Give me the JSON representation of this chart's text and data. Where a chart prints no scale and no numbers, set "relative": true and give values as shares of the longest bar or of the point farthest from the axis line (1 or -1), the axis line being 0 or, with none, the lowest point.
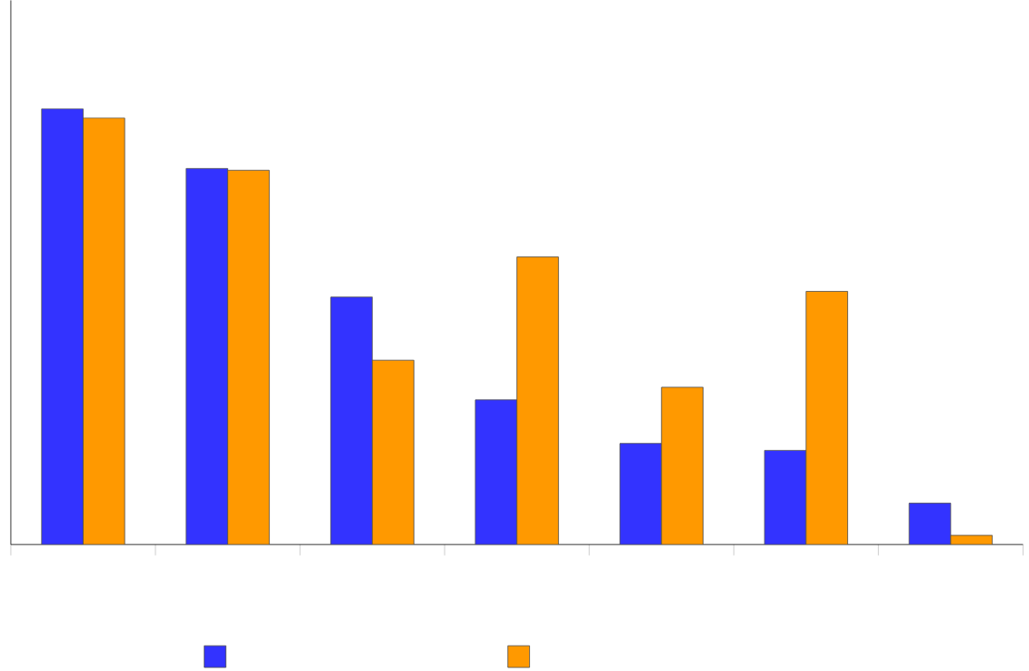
{
  "chart_data": {
    "type": "bar",
    "relative": true,
    "categories": [
      null,
      null,
      null,
      null,
      null,
      null,
      null
    ],
    "series": [
      {
        "color": "#3333ff",
        "values": [
          1,
          0.863,
          0.568,
          0.332,
          0.232,
          0.216,
          0.095
        ]
      },
      {
        "color": "#ff9900",
        "values": [
          0.979,
          0.859,
          0.423,
          0.66,
          0.361,
          0.581,
          0.021
        ]
      }
    ]
  }
}
